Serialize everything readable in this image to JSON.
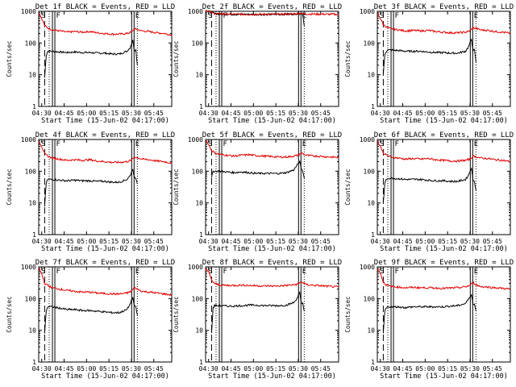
{
  "figure": {
    "time_axis": {
      "start_label": "15-Jun-02 04:17:00",
      "xlabel": "Start Time (15-Jun-02 04:17:00)",
      "xlim_min": [
        11,
        100
      ],
      "tick_minutes": [
        13,
        28,
        43,
        58,
        73,
        88
      ],
      "tick_labels": [
        "04:30",
        "04:45",
        "05:00",
        "05:15",
        "05:30",
        "05:45"
      ]
    },
    "y_axis": {
      "ylabel": "Counts/sec",
      "scale": "log",
      "ylim": [
        1,
        1000
      ],
      "tick_values": [
        1,
        10,
        100,
        1000
      ],
      "tick_labels": [
        "1",
        "10",
        "100",
        "1000"
      ]
    },
    "colors": {
      "events": "#000000",
      "lld": "#e00000",
      "axes": "#000000",
      "background": "#ffffff"
    },
    "markers": [
      {
        "label": "S",
        "minute": 11,
        "style": "solid"
      },
      {
        "label": "",
        "minute": 15,
        "style": "dashed"
      },
      {
        "label": "",
        "minute": 18,
        "style": "dotted"
      },
      {
        "label": "F",
        "minute": 21,
        "style": "solid-double"
      },
      {
        "label": "E",
        "minute": 74,
        "style": "solid-double"
      },
      {
        "label": "",
        "minute": 77,
        "style": "dotted"
      }
    ]
  },
  "chart_data": [
    {
      "type": "line",
      "title": "Det 1f BLACK = Events, RED = LLD",
      "detector": "1f",
      "xlabel": "Start Time (15-Jun-02 04:17:00)",
      "ylabel": "Counts/sec",
      "ylim": [
        1,
        1000
      ],
      "yscale": "log",
      "series": [
        {
          "name": "Events",
          "color": "#000000",
          "x": [
            15,
            16,
            17,
            18,
            20,
            25,
            30,
            35,
            40,
            45,
            50,
            55,
            60,
            65,
            70,
            72,
            74,
            75,
            76,
            77
          ],
          "values": [
            8,
            40,
            55,
            55,
            55,
            52,
            50,
            52,
            50,
            50,
            48,
            48,
            45,
            45,
            55,
            70,
            120,
            60,
            60,
            20
          ]
        },
        {
          "name": "LLD",
          "color": "#e00000",
          "x": [
            11,
            13,
            15,
            17,
            20,
            25,
            30,
            35,
            40,
            45,
            50,
            55,
            60,
            65,
            70,
            73,
            75,
            78,
            80,
            85,
            90,
            95,
            100
          ],
          "values": [
            900,
            600,
            350,
            300,
            260,
            240,
            220,
            230,
            220,
            230,
            210,
            200,
            190,
            190,
            200,
            220,
            280,
            260,
            240,
            230,
            210,
            200,
            180
          ]
        }
      ]
    },
    {
      "type": "line",
      "title": "Det 2f BLACK = Events, RED = LLD",
      "detector": "2f",
      "xlabel": "Start Time (15-Jun-02 04:17:00)",
      "ylabel": "Counts/sec",
      "ylim": [
        1,
        1000
      ],
      "yscale": "log",
      "series": [
        {
          "name": "Events",
          "color": "#000000",
          "x": [
            11,
            13,
            15,
            17,
            20,
            25,
            30,
            40,
            50,
            60,
            70,
            74,
            76,
            77
          ],
          "values": [
            1100,
            1000,
            900,
            850,
            820,
            800,
            800,
            800,
            790,
            800,
            820,
            850,
            800,
            350
          ]
        },
        {
          "name": "LLD",
          "color": "#e00000",
          "x": [
            11,
            13,
            15,
            17,
            20,
            25,
            30,
            40,
            50,
            60,
            70,
            74,
            80,
            90,
            100
          ],
          "values": [
            1100,
            1000,
            900,
            850,
            830,
            820,
            810,
            800,
            800,
            800,
            820,
            860,
            820,
            810,
            800
          ]
        }
      ]
    },
    {
      "type": "line",
      "title": "Det 3f BLACK = Events, RED = LLD",
      "detector": "3f",
      "xlabel": "Start Time (15-Jun-02 04:17:00)",
      "ylabel": "Counts/sec",
      "ylim": [
        1,
        1000
      ],
      "yscale": "log",
      "series": [
        {
          "name": "Events",
          "color": "#000000",
          "x": [
            15,
            16,
            17,
            18,
            20,
            25,
            30,
            35,
            40,
            45,
            50,
            55,
            60,
            65,
            70,
            72,
            74,
            75,
            76,
            77
          ],
          "values": [
            10,
            45,
            55,
            60,
            60,
            58,
            55,
            55,
            55,
            52,
            50,
            50,
            48,
            48,
            55,
            75,
            130,
            60,
            60,
            25
          ]
        },
        {
          "name": "LLD",
          "color": "#e00000",
          "x": [
            11,
            13,
            15,
            17,
            20,
            25,
            30,
            35,
            40,
            45,
            50,
            55,
            60,
            65,
            70,
            73,
            75,
            78,
            80,
            85,
            90,
            95,
            100
          ],
          "values": [
            900,
            600,
            380,
            320,
            280,
            260,
            240,
            250,
            240,
            250,
            230,
            220,
            210,
            210,
            220,
            240,
            300,
            280,
            260,
            250,
            230,
            220,
            200
          ]
        }
      ]
    },
    {
      "type": "line",
      "title": "Det 4f BLACK = Events, RED = LLD",
      "detector": "4f",
      "xlabel": "Start Time (15-Jun-02 04:17:00)",
      "ylabel": "Counts/sec",
      "ylim": [
        1,
        1000
      ],
      "yscale": "log",
      "series": [
        {
          "name": "Events",
          "color": "#000000",
          "x": [
            15,
            16,
            17,
            18,
            20,
            25,
            30,
            35,
            40,
            45,
            50,
            55,
            60,
            65,
            70,
            72,
            74,
            75,
            76,
            77
          ],
          "values": [
            8,
            40,
            55,
            55,
            55,
            52,
            50,
            52,
            50,
            50,
            48,
            48,
            45,
            45,
            55,
            70,
            120,
            60,
            60,
            40
          ]
        },
        {
          "name": "LLD",
          "color": "#e00000",
          "x": [
            11,
            13,
            15,
            17,
            20,
            25,
            30,
            35,
            40,
            45,
            50,
            55,
            60,
            65,
            70,
            73,
            75,
            78,
            80,
            85,
            90,
            95,
            100
          ],
          "values": [
            900,
            600,
            350,
            300,
            260,
            240,
            220,
            230,
            220,
            230,
            210,
            200,
            190,
            190,
            200,
            220,
            280,
            260,
            240,
            230,
            210,
            200,
            180
          ]
        }
      ]
    },
    {
      "type": "line",
      "title": "Det 5f BLACK = Events, RED = LLD",
      "detector": "5f",
      "xlabel": "Start Time (15-Jun-02 04:17:00)",
      "ylabel": "Counts/sec",
      "ylim": [
        1,
        1000
      ],
      "yscale": "log",
      "series": [
        {
          "name": "Events",
          "color": "#000000",
          "x": [
            15,
            16,
            17,
            18,
            20,
            25,
            30,
            35,
            40,
            45,
            50,
            55,
            60,
            65,
            70,
            72,
            74,
            75,
            76,
            77
          ],
          "values": [
            60,
            100,
            100,
            100,
            100,
            95,
            90,
            95,
            90,
            85,
            85,
            85,
            85,
            90,
            110,
            150,
            200,
            120,
            100,
            60
          ]
        },
        {
          "name": "LLD",
          "color": "#e00000",
          "x": [
            11,
            13,
            15,
            17,
            20,
            25,
            30,
            35,
            40,
            45,
            50,
            55,
            60,
            65,
            70,
            73,
            75,
            78,
            80,
            85,
            90,
            95,
            100
          ],
          "values": [
            1000,
            700,
            450,
            380,
            340,
            320,
            300,
            320,
            330,
            310,
            300,
            290,
            280,
            280,
            300,
            320,
            380,
            320,
            310,
            300,
            290,
            280,
            270
          ]
        }
      ]
    },
    {
      "type": "line",
      "title": "Det 6f BLACK = Events, RED = LLD",
      "detector": "6f",
      "xlabel": "Start Time (15-Jun-02 04:17:00)",
      "ylabel": "Counts/sec",
      "ylim": [
        1,
        1000
      ],
      "yscale": "log",
      "series": [
        {
          "name": "Events",
          "color": "#000000",
          "x": [
            15,
            16,
            17,
            18,
            20,
            25,
            30,
            35,
            40,
            45,
            50,
            55,
            60,
            65,
            70,
            72,
            74,
            75,
            76,
            77
          ],
          "values": [
            10,
            40,
            55,
            60,
            60,
            58,
            55,
            55,
            55,
            52,
            50,
            50,
            48,
            48,
            55,
            75,
            130,
            50,
            50,
            25
          ]
        },
        {
          "name": "LLD",
          "color": "#e00000",
          "x": [
            11,
            13,
            15,
            17,
            20,
            25,
            30,
            35,
            40,
            45,
            50,
            55,
            60,
            65,
            70,
            73,
            75,
            78,
            80,
            85,
            90,
            95,
            100
          ],
          "values": [
            900,
            600,
            380,
            320,
            280,
            260,
            240,
            250,
            240,
            250,
            230,
            220,
            210,
            210,
            220,
            240,
            300,
            280,
            260,
            250,
            230,
            220,
            200
          ]
        }
      ]
    },
    {
      "type": "line",
      "title": "Det 7f BLACK = Events, RED = LLD",
      "detector": "7f",
      "xlabel": "Start Time (15-Jun-02 04:17:00)",
      "ylabel": "Counts/sec",
      "ylim": [
        1,
        1000
      ],
      "yscale": "log",
      "series": [
        {
          "name": "Events",
          "color": "#000000",
          "x": [
            15,
            16,
            17,
            18,
            20,
            25,
            30,
            35,
            40,
            45,
            50,
            55,
            60,
            65,
            70,
            72,
            74,
            75,
            76,
            77
          ],
          "values": [
            8,
            40,
            55,
            55,
            55,
            50,
            45,
            45,
            42,
            42,
            40,
            38,
            36,
            36,
            45,
            65,
            110,
            55,
            55,
            30
          ]
        },
        {
          "name": "LLD",
          "color": "#e00000",
          "x": [
            11,
            13,
            15,
            17,
            20,
            25,
            30,
            35,
            40,
            45,
            50,
            55,
            60,
            65,
            70,
            73,
            75,
            78,
            80,
            85,
            90,
            95,
            100
          ],
          "values": [
            900,
            600,
            300,
            260,
            220,
            200,
            180,
            170,
            160,
            160,
            150,
            145,
            140,
            140,
            150,
            170,
            220,
            190,
            170,
            160,
            150,
            140,
            130
          ]
        }
      ]
    },
    {
      "type": "line",
      "title": "Det 8f BLACK = Events, RED = LLD",
      "detector": "8f",
      "xlabel": "Start Time (15-Jun-02 04:17:00)",
      "ylabel": "Counts/sec",
      "ylim": [
        1,
        1000
      ],
      "yscale": "log",
      "series": [
        {
          "name": "Events",
          "color": "#000000",
          "x": [
            15,
            16,
            17,
            18,
            20,
            25,
            30,
            35,
            40,
            45,
            50,
            55,
            60,
            65,
            70,
            72,
            74,
            75,
            76,
            77
          ],
          "values": [
            8,
            50,
            60,
            60,
            60,
            58,
            58,
            60,
            62,
            62,
            60,
            60,
            60,
            62,
            75,
            100,
            150,
            70,
            70,
            40
          ]
        },
        {
          "name": "LLD",
          "color": "#e00000",
          "x": [
            11,
            13,
            15,
            17,
            20,
            25,
            30,
            35,
            40,
            45,
            50,
            55,
            60,
            65,
            70,
            73,
            75,
            78,
            80,
            85,
            90,
            95,
            100
          ],
          "values": [
            900,
            700,
            380,
            300,
            270,
            260,
            260,
            265,
            260,
            255,
            250,
            250,
            250,
            260,
            270,
            290,
            340,
            280,
            270,
            260,
            250,
            240,
            230
          ]
        }
      ]
    },
    {
      "type": "line",
      "title": "Det 9f BLACK = Events, RED = LLD",
      "detector": "9f",
      "xlabel": "Start Time (15-Jun-02 04:17:00)",
      "ylabel": "Counts/sec",
      "ylim": [
        1,
        1000
      ],
      "yscale": "log",
      "series": [
        {
          "name": "Events",
          "color": "#000000",
          "x": [
            15,
            16,
            17,
            18,
            20,
            25,
            30,
            35,
            40,
            45,
            50,
            55,
            60,
            65,
            70,
            72,
            74,
            75,
            76,
            77
          ],
          "values": [
            8,
            40,
            50,
            55,
            55,
            55,
            52,
            55,
            55,
            55,
            55,
            55,
            58,
            60,
            70,
            95,
            140,
            65,
            65,
            40
          ]
        },
        {
          "name": "LLD",
          "color": "#e00000",
          "x": [
            11,
            13,
            15,
            17,
            20,
            25,
            30,
            35,
            40,
            45,
            50,
            55,
            60,
            65,
            70,
            73,
            75,
            78,
            80,
            85,
            90,
            95,
            100
          ],
          "values": [
            900,
            650,
            330,
            270,
            240,
            230,
            220,
            225,
            220,
            220,
            215,
            210,
            215,
            220,
            235,
            260,
            320,
            260,
            240,
            230,
            220,
            210,
            200
          ]
        }
      ]
    }
  ]
}
